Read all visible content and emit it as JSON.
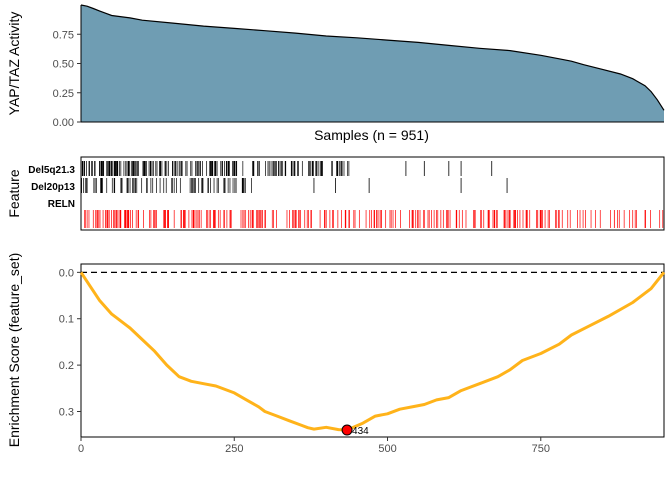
{
  "chart_data": [
    {
      "type": "area",
      "ylabel": "YAP/TAZ Activity",
      "xlabel": "Samples (n = 951)",
      "xlim": [
        0,
        951
      ],
      "ylim": [
        0,
        1.0
      ],
      "yticks": [
        "0.00",
        "0.25",
        "0.50",
        "0.75"
      ],
      "ytick_values": [
        0,
        0.25,
        0.5,
        0.75
      ],
      "fill_color": "#6f9db3",
      "x": [
        0,
        10,
        20,
        30,
        40,
        50,
        80,
        100,
        150,
        200,
        250,
        300,
        350,
        400,
        450,
        500,
        550,
        600,
        650,
        700,
        750,
        780,
        800,
        820,
        850,
        880,
        900,
        920,
        930,
        940,
        951
      ],
      "values": [
        1.0,
        0.99,
        0.97,
        0.95,
        0.93,
        0.91,
        0.89,
        0.87,
        0.845,
        0.82,
        0.8,
        0.78,
        0.76,
        0.735,
        0.72,
        0.7,
        0.68,
        0.655,
        0.63,
        0.61,
        0.57,
        0.54,
        0.52,
        0.49,
        0.45,
        0.41,
        0.37,
        0.31,
        0.26,
        0.19,
        0.1
      ]
    },
    {
      "type": "heatmap",
      "ylabel": "Feature",
      "rows": [
        "Del5q21.3",
        "Del20p13",
        "RELN"
      ],
      "colors": [
        "#000000",
        "#000000",
        "#ff0000"
      ],
      "row_spans": [
        [
          0,
          440
        ],
        [
          0,
          300
        ],
        [
          0,
          951
        ]
      ],
      "row_densities": [
        0.55,
        0.35,
        0.35
      ],
      "row_extras": [
        [
          530,
          560,
          600,
          620,
          670
        ],
        [
          380,
          415,
          470,
          620,
          695
        ],
        [
          490,
          700,
          745,
          750,
          780,
          870
        ]
      ]
    },
    {
      "type": "line",
      "ylabel": "Enrichment Score (feature_set)",
      "xticks": [
        "0",
        "250",
        "500",
        "750"
      ],
      "xtick_values": [
        0,
        250,
        500,
        750
      ],
      "yticks": [
        "0.0",
        "0.1",
        "0.2",
        "0.3"
      ],
      "ytick_values": [
        0,
        0.1,
        0.2,
        0.3
      ],
      "xlim": [
        0,
        951
      ],
      "ylim": [
        0.355,
        -0.018
      ],
      "line_color": "#ffb31a",
      "x": [
        0,
        15,
        30,
        50,
        60,
        80,
        100,
        120,
        140,
        160,
        180,
        200,
        220,
        250,
        270,
        290,
        300,
        320,
        340,
        360,
        370,
        380,
        400,
        420,
        434,
        460,
        480,
        500,
        520,
        540,
        560,
        580,
        600,
        620,
        650,
        680,
        700,
        720,
        750,
        780,
        800,
        830,
        860,
        900,
        930,
        951
      ],
      "values": [
        0.0,
        0.03,
        0.06,
        0.09,
        0.1,
        0.12,
        0.145,
        0.17,
        0.2,
        0.225,
        0.235,
        0.24,
        0.245,
        0.26,
        0.275,
        0.29,
        0.3,
        0.31,
        0.32,
        0.33,
        0.335,
        0.338,
        0.334,
        0.339,
        0.34,
        0.325,
        0.31,
        0.305,
        0.295,
        0.29,
        0.285,
        0.275,
        0.27,
        0.255,
        0.24,
        0.225,
        0.21,
        0.19,
        0.175,
        0.155,
        0.135,
        0.115,
        0.095,
        0.065,
        0.035,
        0.0
      ],
      "reference_line": 0,
      "peak": {
        "x": 434,
        "y": 0.34,
        "label": "434",
        "color": "#ff0000"
      }
    }
  ]
}
